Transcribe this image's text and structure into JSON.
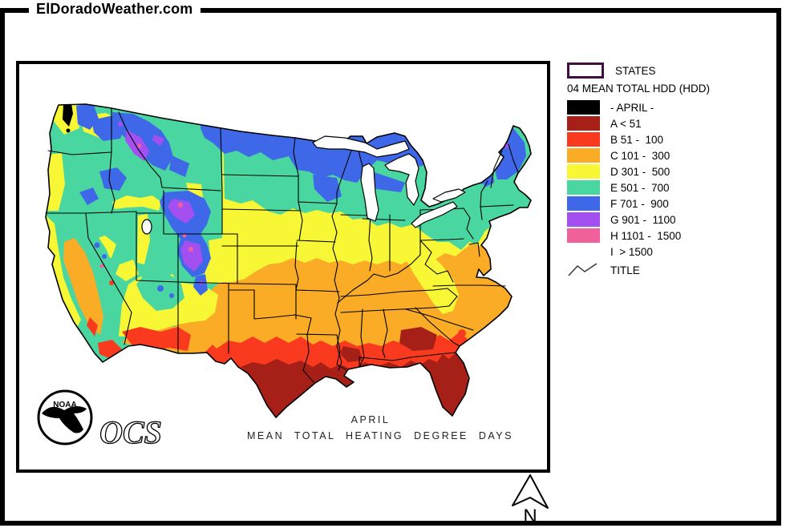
{
  "page": {
    "site_title": "ElDoradoWeather.com"
  },
  "map": {
    "caption_line1": "APRIL",
    "caption_line2": "MEAN  TOTAL  HEATING   DEGREE  DAYS",
    "noaa_label": "NOAA",
    "ocs_label": "OCS",
    "north_arrow_label": "N"
  },
  "legend": {
    "states_label": "STATES",
    "title": "04 MEAN TOTAL HDD (HDD)",
    "items": [
      {
        "label": "- APRIL -",
        "color": "#000000",
        "swatch": true
      },
      {
        "label": "A < 51",
        "color": "#A62017",
        "swatch": true
      },
      {
        "label": "B 51 -  100",
        "color": "#FA3A1E",
        "swatch": true
      },
      {
        "label": "C 101 -  300",
        "color": "#FAAC26",
        "swatch": true
      },
      {
        "label": "D 301 -  500",
        "color": "#F8F735",
        "swatch": true
      },
      {
        "label": "E 501 -  700",
        "color": "#49D6A0",
        "swatch": true
      },
      {
        "label": "F 701 -  900",
        "color": "#3E68E8",
        "swatch": true
      },
      {
        "label": "G 901 -  1100",
        "color": "#A44FF0",
        "swatch": true
      },
      {
        "label": "H 1101 -  1500",
        "color": "#F0619C",
        "swatch": true
      },
      {
        "label": "I  > 1500",
        "color": null,
        "swatch": false
      }
    ],
    "title_symbol_label": "TITLE"
  },
  "palette": {
    "black": "#000000",
    "darkred": "#A62017",
    "red": "#FA3A1E",
    "orange": "#FAAC26",
    "yellow": "#F8F735",
    "green": "#49D6A0",
    "blue": "#3E68E8",
    "purple": "#A44FF0",
    "pink": "#F0619C",
    "statesPurple": "#3F0D3F"
  }
}
